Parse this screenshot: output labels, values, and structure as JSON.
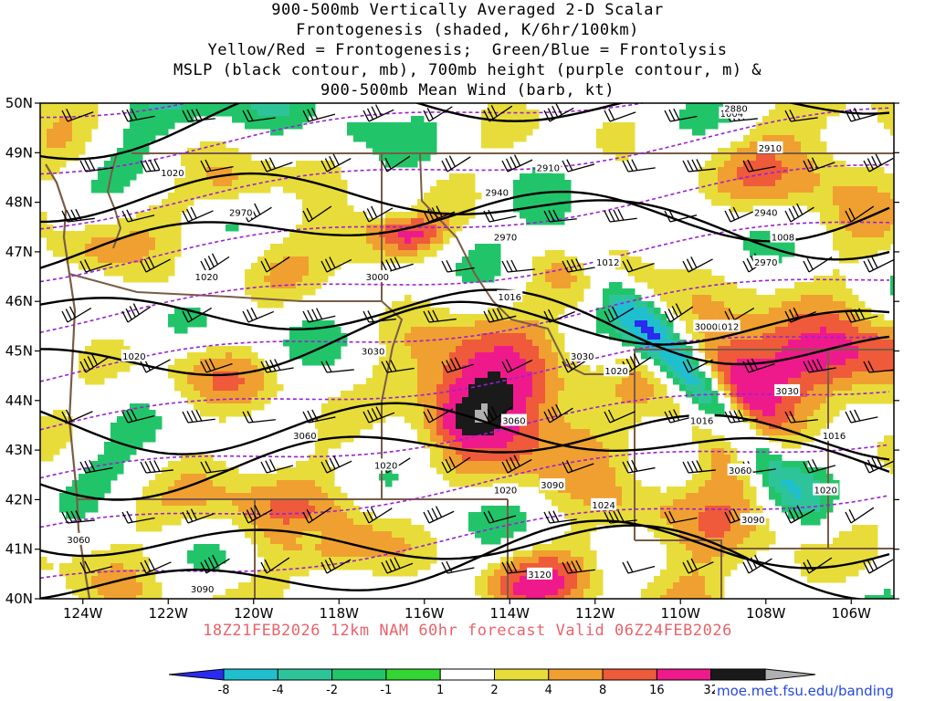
{
  "title_lines": [
    "900-500mb Vertically Averaged 2-D Scalar",
    "Frontogenesis (shaded, K/6hr/100km)",
    "Yellow/Red = Frontogenesis;  Green/Blue = Frontolysis",
    "MSLP (black contour, mb), 700mb height (purple contour, m) &",
    "900-500mb Mean Wind (barb, kt)"
  ],
  "forecast_caption": "18Z21FEB2026 12km NAM 60hr forecast Valid 06Z24FEB2026",
  "credit": "moe.met.fsu.edu/banding",
  "chart_data": {
    "type": "heatmap",
    "title": "900-500mb Vertically Averaged 2-D Scalar Frontogenesis (shaded, K/6hr/100km)",
    "field_units": "K/6hr/100km",
    "lat_range": [
      40,
      50
    ],
    "lon_range": [
      -125,
      -105
    ],
    "lat_ticks": [
      "40N",
      "41N",
      "42N",
      "43N",
      "44N",
      "45N",
      "46N",
      "47N",
      "48N",
      "49N",
      "50N"
    ],
    "lon_ticks": [
      "124W",
      "122W",
      "120W",
      "118W",
      "116W",
      "114W",
      "112W",
      "110W",
      "108W",
      "106W"
    ],
    "lat_values": [
      40,
      41,
      42,
      43,
      44,
      45,
      46,
      47,
      48,
      49,
      50
    ],
    "lon_values": [
      -124,
      -122,
      -120,
      -118,
      -116,
      -114,
      -112,
      -110,
      -108,
      -106
    ],
    "colorbar": {
      "labels": [
        "-8",
        "-4",
        "-2",
        "-1",
        "1",
        "2",
        "4",
        "8",
        "16",
        "32"
      ],
      "colors": [
        "#2a2af0",
        "#1fbfd0",
        "#2ec49a",
        "#22c46a",
        "#33d633",
        "#ffffff",
        "#e8dc3a",
        "#f0a030",
        "#ee5a3a",
        "#ee1a8c",
        "#1a1a1a",
        "#b0b0b0"
      ]
    },
    "mslp_contours_mb": [
      {
        "value": "1020",
        "lon": -121.9,
        "lat": 48.6
      },
      {
        "value": "1020",
        "lon": -121.1,
        "lat": 46.5
      },
      {
        "value": "1020",
        "lon": -122.8,
        "lat": 44.9
      },
      {
        "value": "1020",
        "lon": -116.9,
        "lat": 42.7
      },
      {
        "value": "1020",
        "lon": -114.1,
        "lat": 42.2
      },
      {
        "value": "1020",
        "lon": -111.5,
        "lat": 44.6
      },
      {
        "value": "1016",
        "lon": -114.0,
        "lat": 46.1
      },
      {
        "value": "1012",
        "lon": -111.7,
        "lat": 46.8
      },
      {
        "value": "1008",
        "lon": -107.6,
        "lat": 47.3
      },
      {
        "value": "1004",
        "lon": -108.8,
        "lat": 49.8
      },
      {
        "value": "1012",
        "lon": -108.9,
        "lat": 45.5
      },
      {
        "value": "1016",
        "lon": -109.5,
        "lat": 43.6
      },
      {
        "value": "1016",
        "lon": -106.4,
        "lat": 43.3
      },
      {
        "value": "1024",
        "lon": -111.8,
        "lat": 41.9
      },
      {
        "value": "1020",
        "lon": -106.6,
        "lat": 42.2
      }
    ],
    "height_contours_m": [
      {
        "value": "2970",
        "lon": -120.3,
        "lat": 47.8
      },
      {
        "value": "2970",
        "lon": -114.1,
        "lat": 47.3
      },
      {
        "value": "2970",
        "lon": -108.0,
        "lat": 46.8
      },
      {
        "value": "2940",
        "lon": -114.3,
        "lat": 48.2
      },
      {
        "value": "2940",
        "lon": -108.0,
        "lat": 47.8
      },
      {
        "value": "2910",
        "lon": -113.1,
        "lat": 48.7
      },
      {
        "value": "2910",
        "lon": -107.9,
        "lat": 49.1
      },
      {
        "value": "2880",
        "lon": -108.7,
        "lat": 49.9
      },
      {
        "value": "3000",
        "lon": -117.1,
        "lat": 46.5
      },
      {
        "value": "3000",
        "lon": -109.4,
        "lat": 45.5
      },
      {
        "value": "3030",
        "lon": -117.2,
        "lat": 45.0
      },
      {
        "value": "3030",
        "lon": -112.3,
        "lat": 44.9
      },
      {
        "value": "3030",
        "lon": -107.5,
        "lat": 44.2
      },
      {
        "value": "3060",
        "lon": -118.8,
        "lat": 43.3
      },
      {
        "value": "3060",
        "lon": -113.9,
        "lat": 43.6
      },
      {
        "value": "3060",
        "lon": -108.6,
        "lat": 42.6
      },
      {
        "value": "3090",
        "lon": -113.0,
        "lat": 42.3
      },
      {
        "value": "3090",
        "lon": -108.3,
        "lat": 41.6
      },
      {
        "value": "3060",
        "lon": -124.1,
        "lat": 41.2
      },
      {
        "value": "3090",
        "lon": -121.2,
        "lat": 40.2
      },
      {
        "value": "3120",
        "lon": -113.3,
        "lat": 40.5
      }
    ]
  }
}
